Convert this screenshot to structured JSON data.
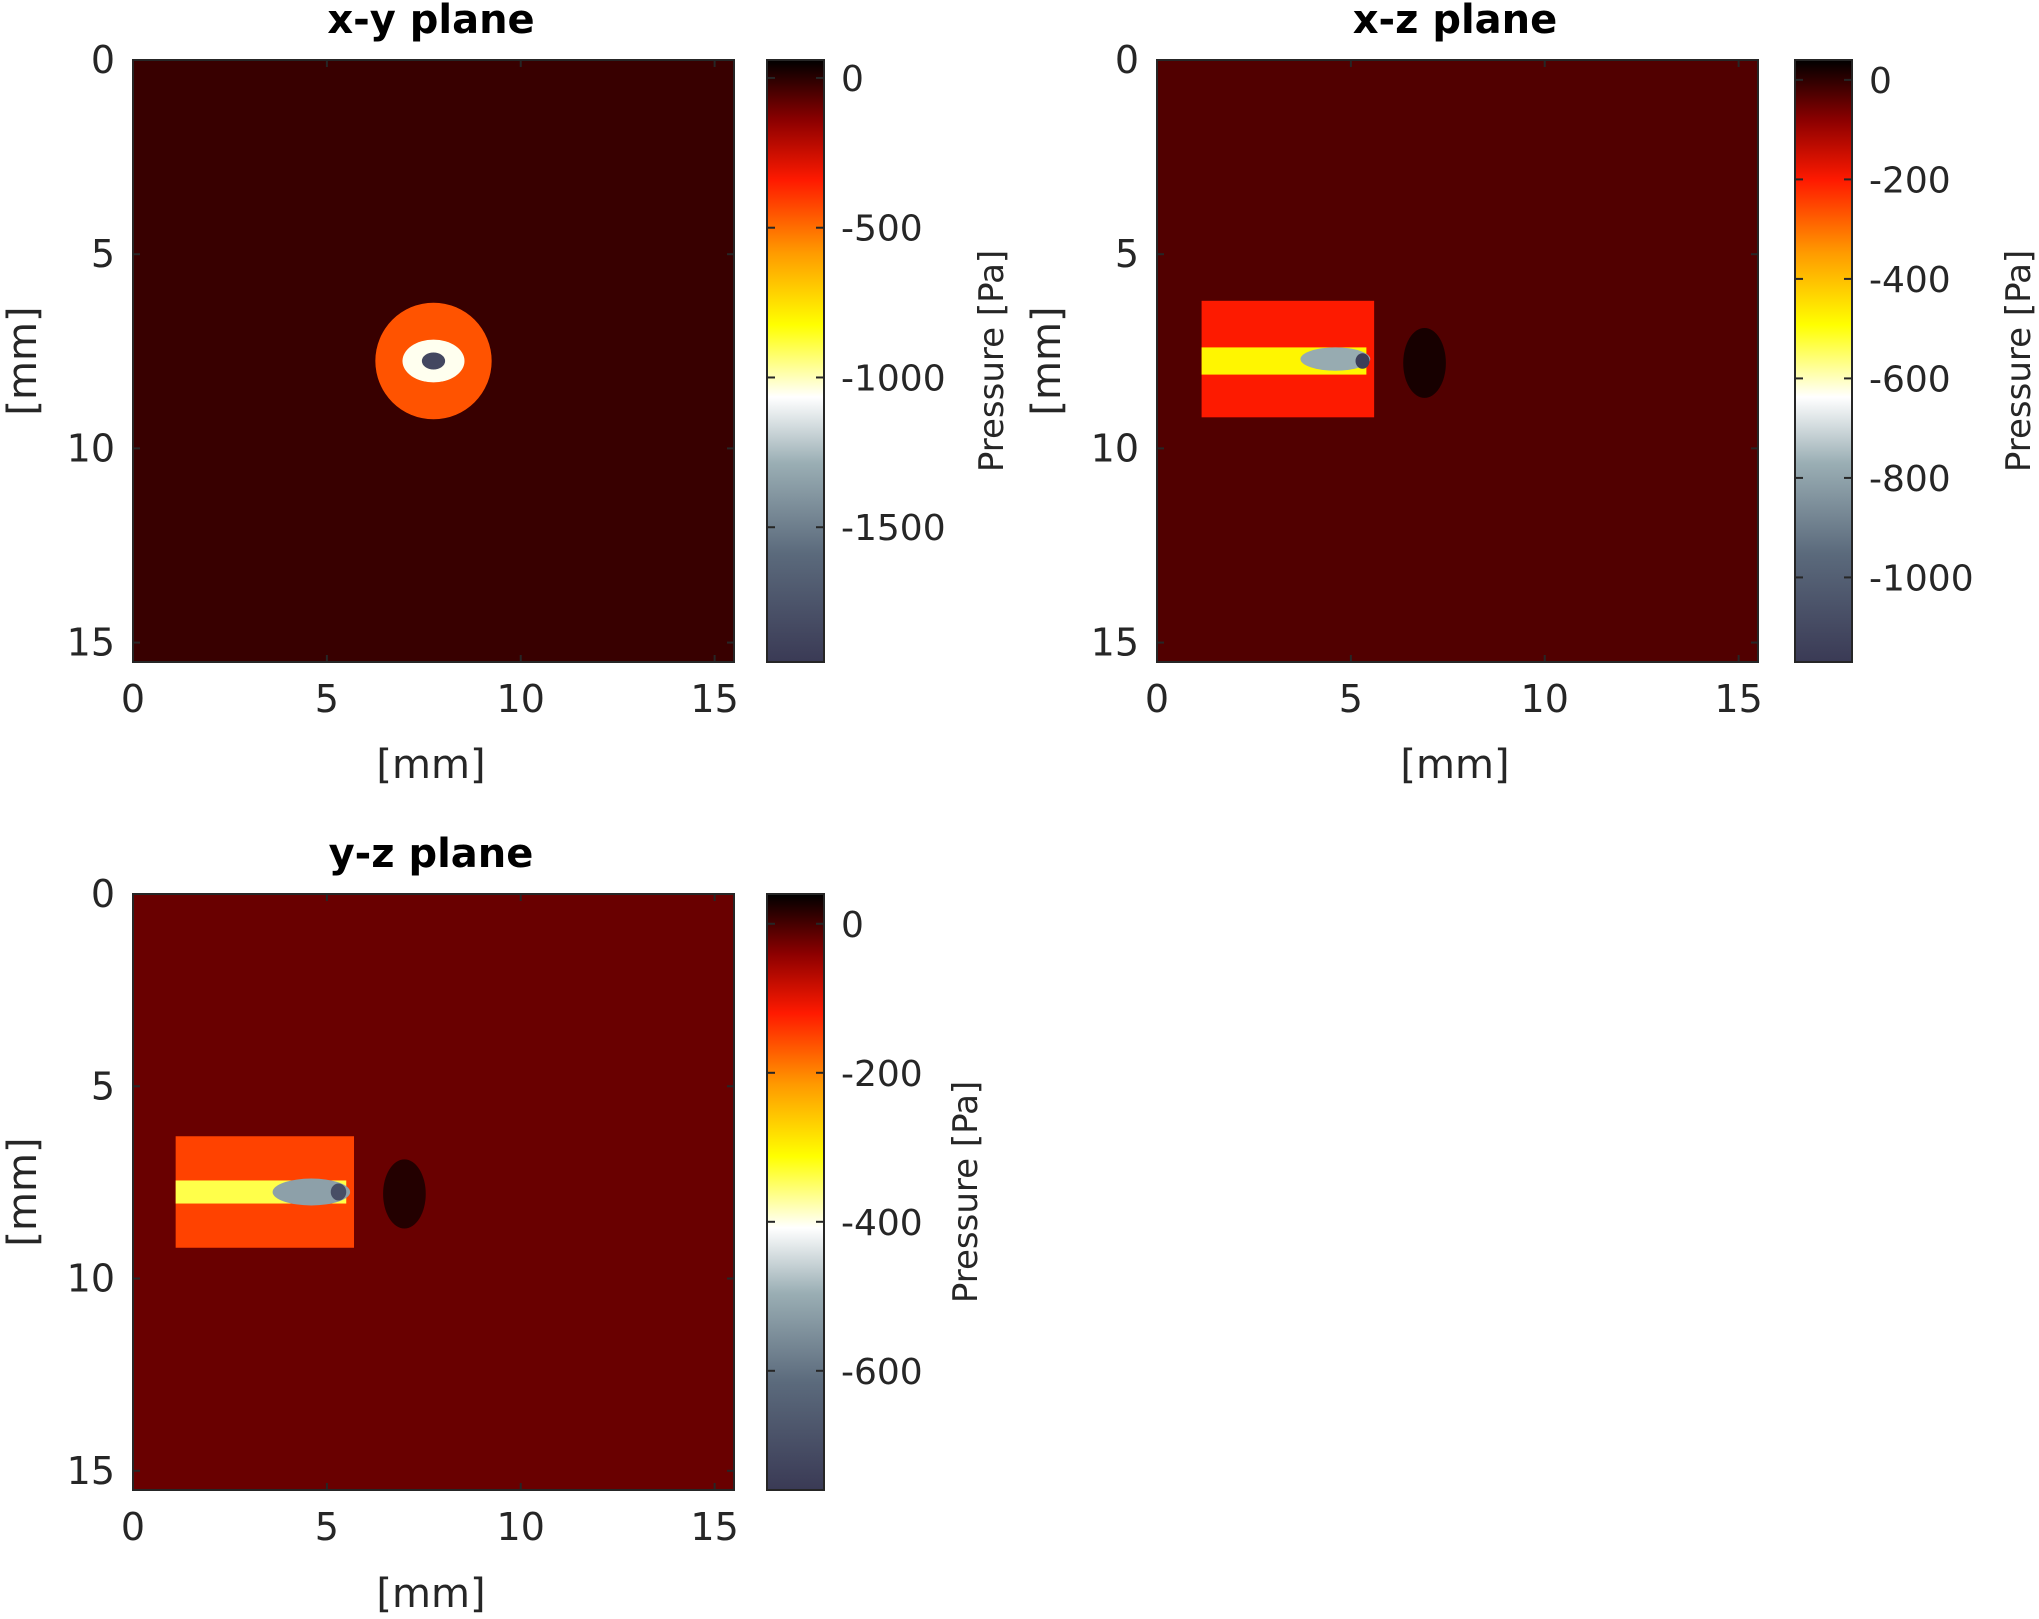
{
  "chart_data": [
    {
      "type": "heatmap",
      "title": "x-y plane",
      "xlabel": "[mm]",
      "ylabel": "[mm]",
      "xlim": [
        0,
        15.5
      ],
      "ylim": [
        15.5,
        0
      ],
      "xticks": [
        0,
        5,
        10,
        15
      ],
      "yticks": [
        0,
        5,
        10,
        15
      ],
      "colorbar": {
        "label": "Pressure [Pa]",
        "range": [
          -1950,
          60
        ],
        "ticks": [
          0,
          -500,
          -1000,
          -1500
        ]
      },
      "background_value": -20,
      "features": [
        {
          "shape": "disk",
          "cx": 7.75,
          "cy": 7.75,
          "rx": 1.5,
          "ry": 1.5,
          "value": -450
        },
        {
          "shape": "disk",
          "cx": 7.75,
          "cy": 7.75,
          "rx": 0.8,
          "ry": 0.55,
          "value": -1050
        },
        {
          "shape": "disk",
          "cx": 7.75,
          "cy": 7.75,
          "rx": 0.3,
          "ry": 0.22,
          "value": -1850
        }
      ]
    },
    {
      "type": "heatmap",
      "title": "x-z plane",
      "xlabel": "[mm]",
      "ylabel": "[mm]",
      "xlim": [
        0,
        15.5
      ],
      "ylim": [
        15.5,
        0
      ],
      "xticks": [
        0,
        5,
        10,
        15
      ],
      "yticks": [
        0,
        5,
        10,
        15
      ],
      "colorbar": {
        "label": "Pressure [Pa]",
        "range": [
          -1170,
          40
        ],
        "ticks": [
          0,
          -200,
          -400,
          -600,
          -800,
          -1000
        ]
      },
      "background_value": -30,
      "features": [
        {
          "shape": "rect",
          "x0": 1.15,
          "x1": 5.6,
          "y0": 6.2,
          "y1": 9.2,
          "value": -200
        },
        {
          "shape": "rect",
          "x0": 1.15,
          "x1": 5.4,
          "y0": 7.4,
          "y1": 8.1,
          "value": -480
        },
        {
          "shape": "disk",
          "cx": 4.6,
          "cy": 7.7,
          "rx": 0.9,
          "ry": 0.3,
          "value": -780
        },
        {
          "shape": "disk",
          "cx": 5.3,
          "cy": 7.75,
          "rx": 0.18,
          "ry": 0.2,
          "value": -1150
        },
        {
          "shape": "disk",
          "cx": 6.9,
          "cy": 7.8,
          "rx": 0.55,
          "ry": 0.9,
          "value": 20
        }
      ]
    },
    {
      "type": "heatmap",
      "title": "y-z plane",
      "xlabel": "[mm]",
      "ylabel": "[mm]",
      "xlim": [
        0,
        15.5
      ],
      "ylim": [
        15.5,
        0
      ],
      "xticks": [
        0,
        5,
        10,
        15
      ],
      "yticks": [
        0,
        5,
        10,
        15
      ],
      "colorbar": {
        "label": "Pressure [Pa]",
        "range": [
          -760,
          40
        ],
        "ticks": [
          0,
          -200,
          -400,
          -600
        ]
      },
      "background_value": -20,
      "features": [
        {
          "shape": "rect",
          "x0": 1.1,
          "x1": 5.7,
          "y0": 6.3,
          "y1": 9.2,
          "value": -150
        },
        {
          "shape": "rect",
          "x0": 1.1,
          "x1": 5.5,
          "y0": 7.45,
          "y1": 8.05,
          "value": -340
        },
        {
          "shape": "disk",
          "cx": 4.6,
          "cy": 7.75,
          "rx": 1.0,
          "ry": 0.35,
          "value": -520
        },
        {
          "shape": "disk",
          "cx": 5.3,
          "cy": 7.75,
          "rx": 0.2,
          "ry": 0.22,
          "value": -700
        },
        {
          "shape": "disk",
          "cx": 7.0,
          "cy": 7.8,
          "rx": 0.55,
          "ry": 0.9,
          "value": 20
        }
      ]
    }
  ]
}
